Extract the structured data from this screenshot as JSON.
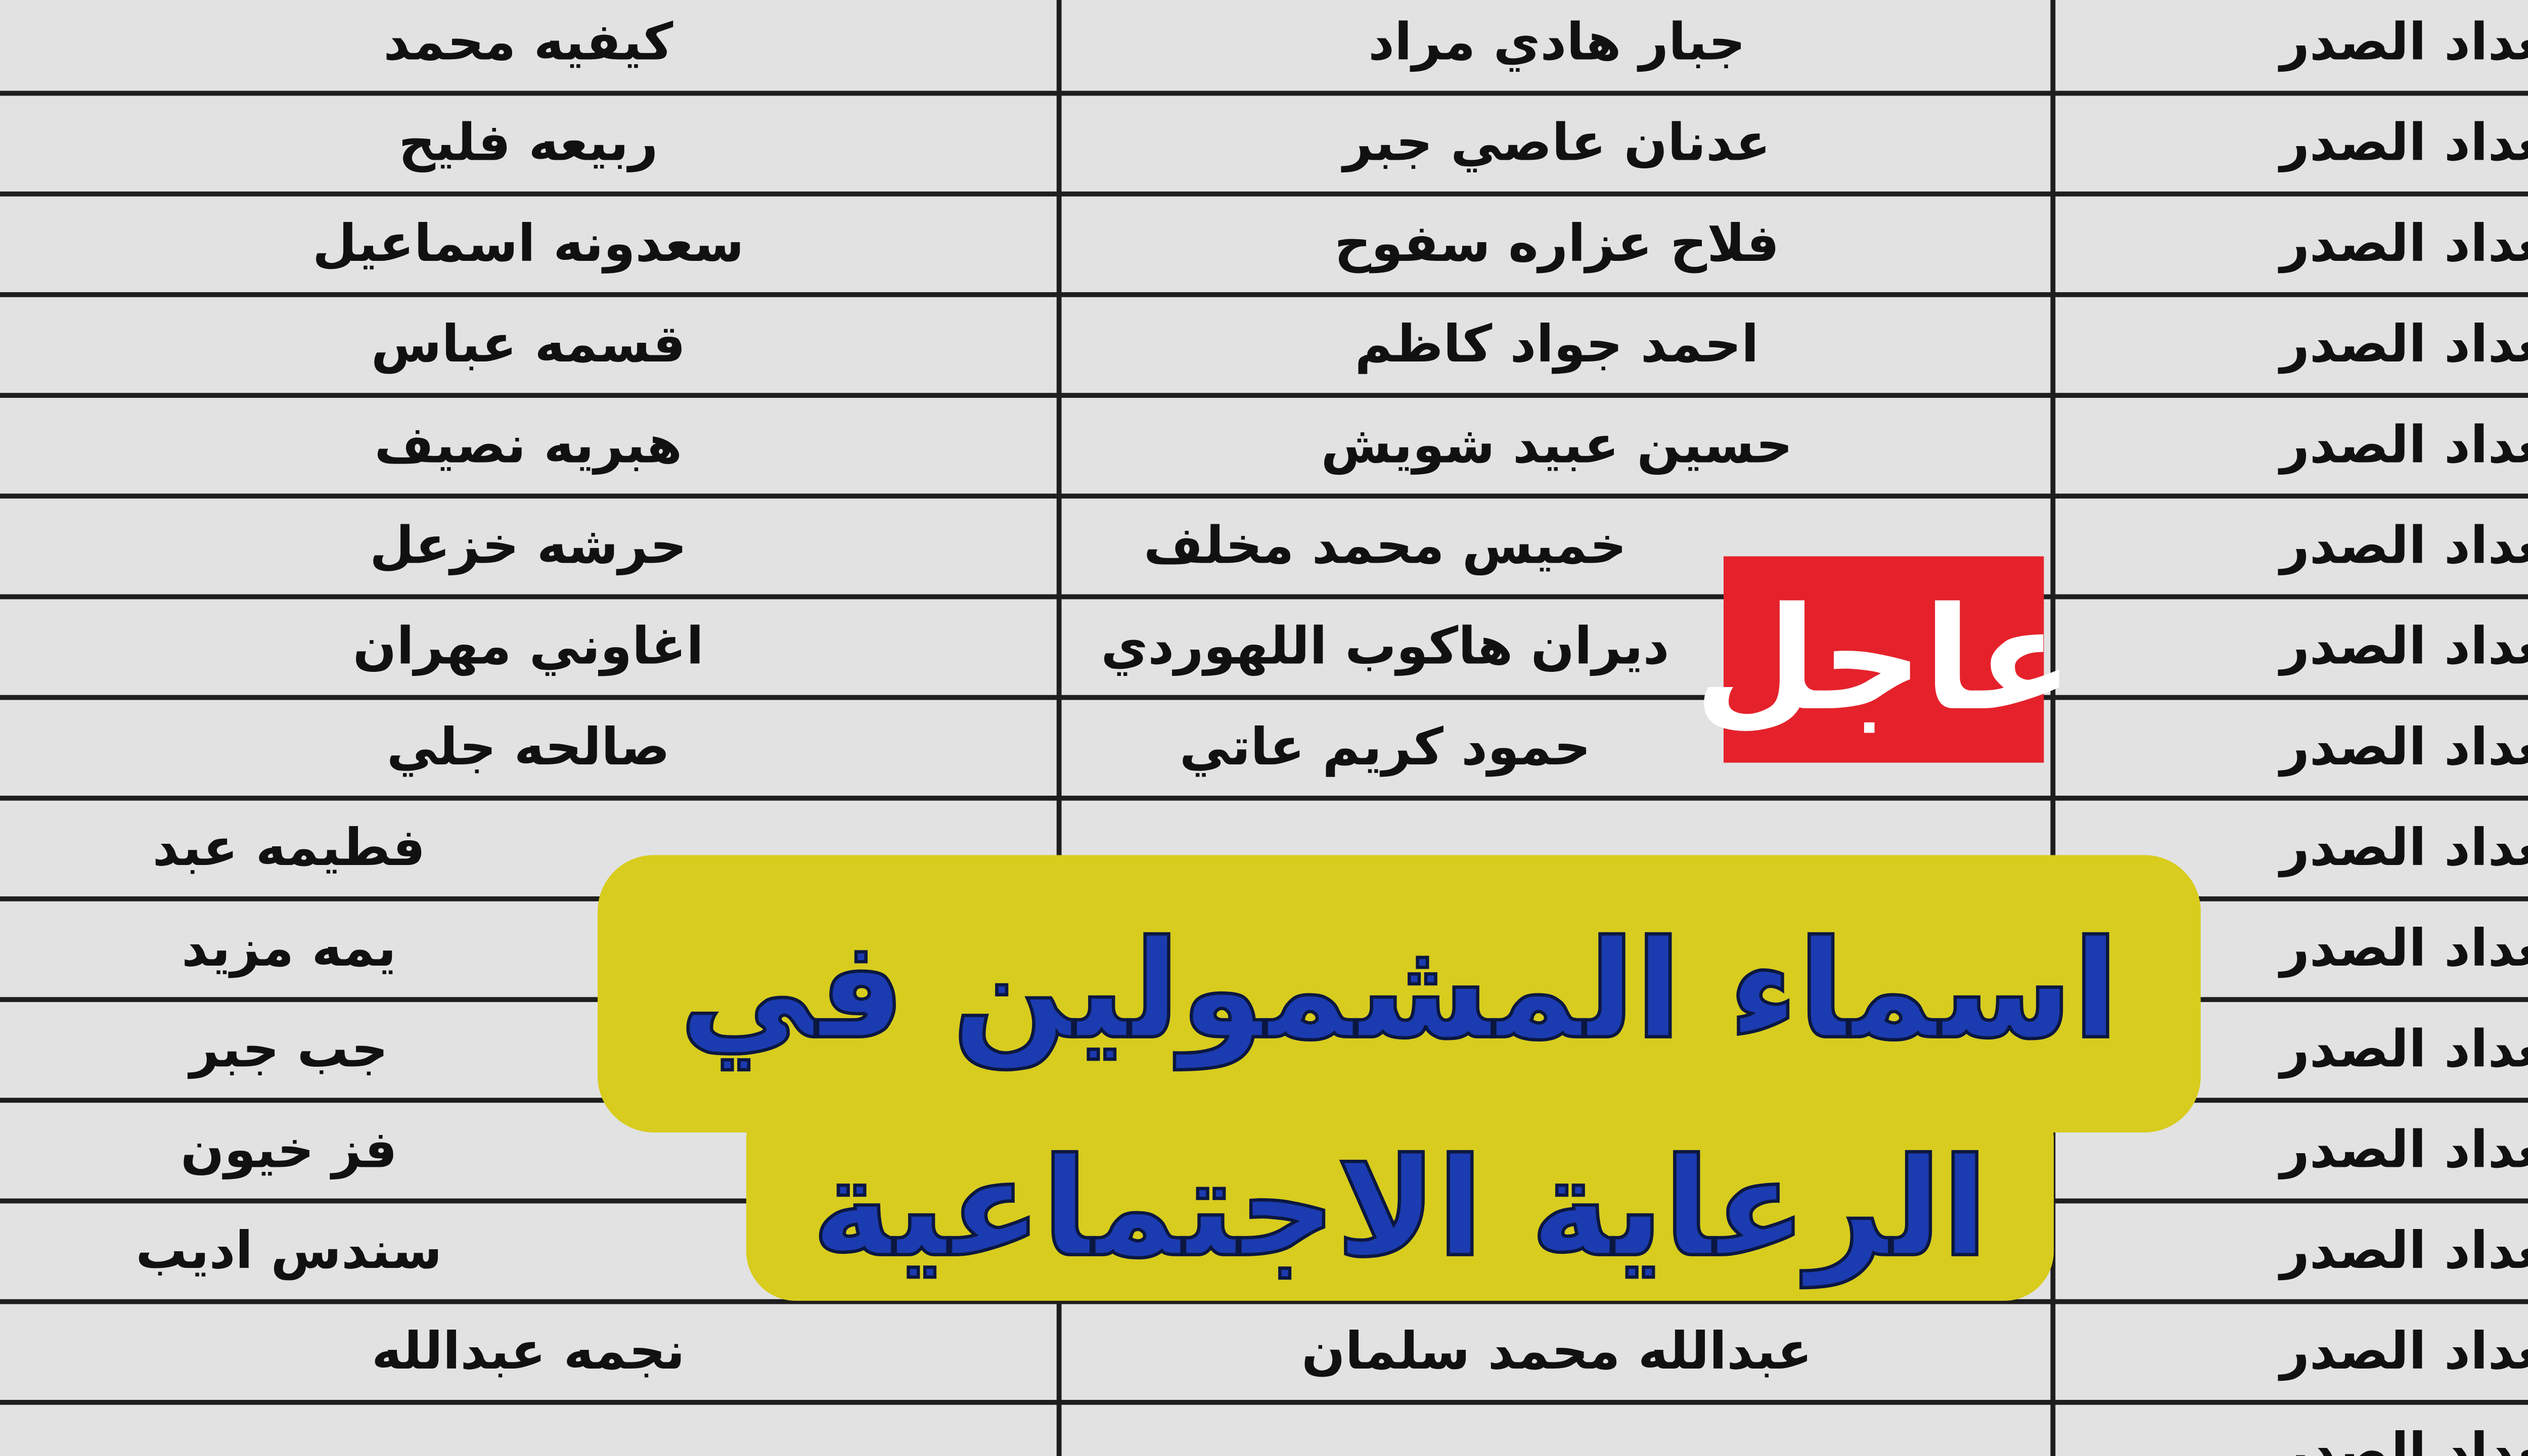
{
  "table": {
    "rows": [
      {
        "city": "بغداد الصدر",
        "name": "جبار هادي مراد",
        "mother": "كيفيه محمد"
      },
      {
        "city": "بغداد الصدر",
        "name": "عدنان عاصي جبر",
        "mother": "ربيعه فليح"
      },
      {
        "city": "بغداد الصدر",
        "name": "فلاح عزاره سفوح",
        "mother": "سعدونه اسماعيل"
      },
      {
        "city": "بغداد الصدر",
        "name": "احمد جواد كاظم",
        "mother": "قسمه عباس"
      },
      {
        "city": "بغداد الصدر",
        "name": "حسين عبيد شويش",
        "mother": "هبريه نصيف"
      },
      {
        "city": "بغداد الصدر",
        "name": "خميس محمد مخلف",
        "mother": "حرشه خزعل"
      },
      {
        "city": "بغداد الصدر",
        "name": "ديران هاكوب اللهوردي",
        "mother": "اغاوني مهران"
      },
      {
        "city": "بغداد الصدر",
        "name": "حمود كريم عاتي",
        "mother": "صالحه جلي"
      },
      {
        "city": "بغداد الصدر",
        "name": "",
        "mother": "فطيمه عبد"
      },
      {
        "city": "بغداد الصدر",
        "name": "",
        "mother": "يمه مزيد"
      },
      {
        "city": "بغداد الصدر",
        "name": "",
        "mother": "جب جبر"
      },
      {
        "city": "بغداد الصدر",
        "name": "",
        "mother": "فز خيون"
      },
      {
        "city": "بغداد الصدر",
        "name": "",
        "mother": "سندس اديب"
      },
      {
        "city": "بغداد الصدر",
        "name": "عبدالله محمد سلمان",
        "mother": "نجمه عبدالله"
      },
      {
        "city": "بغداد الصدر",
        "name": "",
        "mother": ""
      }
    ]
  },
  "overlay": {
    "line1": "اسماء المشمولين في",
    "line2": "الرعاية الاجتماعية",
    "bg_color": "#d8cc1e",
    "text_color": "#1b3bb0"
  },
  "badge": {
    "label": "عاجل",
    "color": "#e5222b"
  }
}
